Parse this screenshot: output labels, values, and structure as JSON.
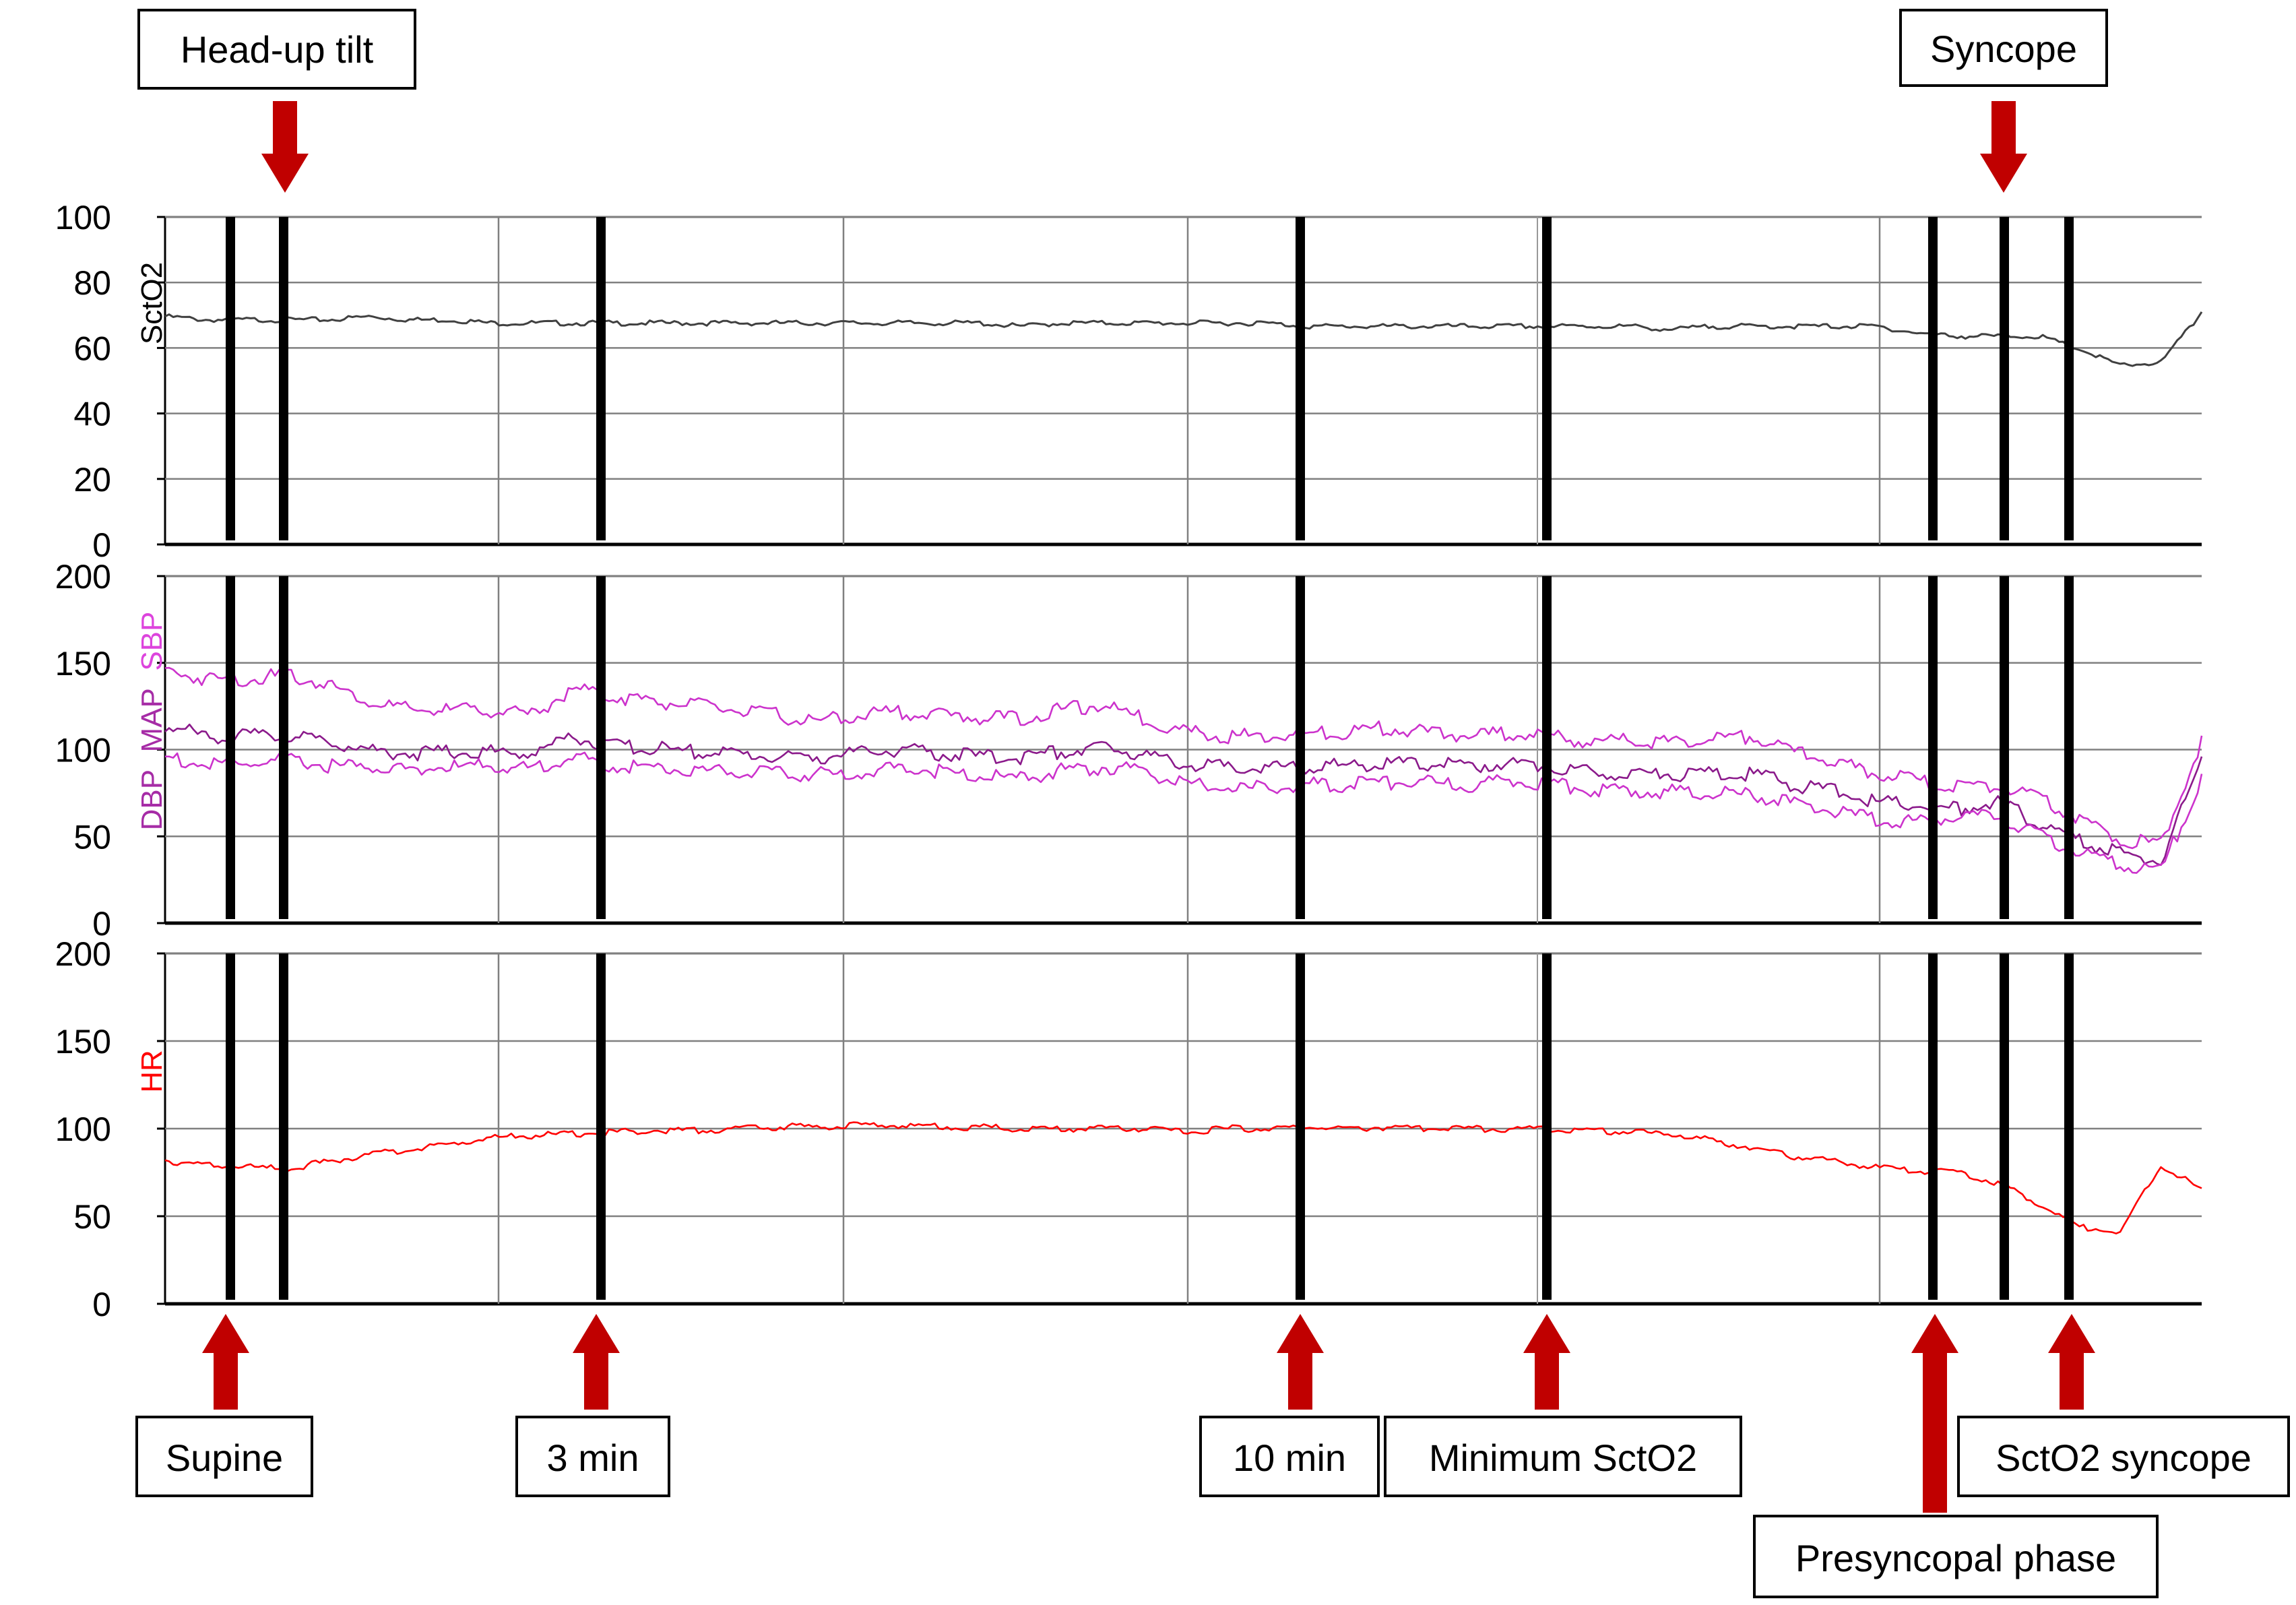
{
  "colors": {
    "sctO2": "#404040",
    "bp": "#cc33cc",
    "map": "#8b1a8b",
    "hr": "#ff0000",
    "marker": "#000000",
    "arrow": "#c00000",
    "grid": "#808080"
  },
  "annotations": {
    "head_up_tilt": "Head-up tilt",
    "syncope": "Syncope",
    "supine": "Supine",
    "three_min": "3 min",
    "ten_min": "10 min",
    "minimum_scto2": "Minimum SctO2",
    "presyncopal_phase": "Presyncopal phase",
    "scto2_syncope": "SctO2 syncope"
  },
  "chart_data": [
    {
      "type": "line",
      "ylabel": "SctO2",
      "ylim": [
        0,
        100
      ],
      "yticks": [
        "0",
        "20",
        "40",
        "60",
        "80",
        "100"
      ],
      "grid": true,
      "series": [
        {
          "name": "SctO2",
          "x": [
            0,
            2,
            4,
            6,
            8,
            10,
            12,
            14,
            16,
            18,
            20,
            22,
            24,
            26,
            28,
            30,
            32,
            34,
            36,
            38,
            40,
            42,
            44,
            46,
            48,
            50,
            52,
            54,
            56,
            58,
            60,
            62,
            64,
            66,
            68,
            70,
            72,
            74,
            76,
            78,
            80,
            82,
            84,
            86,
            88,
            90,
            92,
            94,
            96,
            98,
            100
          ],
          "values": [
            70,
            69,
            69,
            69,
            69,
            70,
            69,
            69,
            68,
            68,
            68,
            68,
            68,
            68,
            68,
            68,
            68,
            68,
            68,
            68,
            68,
            67,
            68,
            68,
            68,
            68,
            68,
            68,
            67,
            67,
            67,
            67,
            67,
            67,
            67,
            67,
            67,
            66,
            67,
            67,
            67,
            67,
            67,
            65,
            64,
            64,
            64,
            60,
            55,
            56,
            71
          ]
        }
      ]
    },
    {
      "type": "line",
      "ylabel_parts": [
        "DBP",
        "MAP",
        "SBP"
      ],
      "ylim": [
        0,
        200
      ],
      "yticks": [
        "0",
        "50",
        "100",
        "150",
        "200"
      ],
      "grid": true,
      "series": [
        {
          "name": "SBP",
          "x": [
            0,
            2,
            4,
            6,
            8,
            10,
            12,
            14,
            16,
            18,
            20,
            22,
            24,
            26,
            28,
            30,
            32,
            34,
            36,
            38,
            40,
            42,
            44,
            46,
            48,
            50,
            52,
            54,
            56,
            58,
            60,
            62,
            64,
            66,
            68,
            70,
            72,
            74,
            76,
            78,
            80,
            82,
            84,
            86,
            88,
            90,
            92,
            94,
            96,
            98,
            100
          ],
          "values": [
            148,
            143,
            143,
            145,
            140,
            130,
            125,
            125,
            125,
            122,
            137,
            133,
            130,
            128,
            125,
            122,
            118,
            122,
            124,
            122,
            121,
            120,
            125,
            128,
            120,
            113,
            110,
            110,
            111,
            112,
            115,
            112,
            110,
            112,
            110,
            106,
            108,
            106,
            108,
            110,
            101,
            95,
            88,
            85,
            80,
            82,
            74,
            63,
            50,
            48,
            108
          ]
        },
        {
          "name": "MAP",
          "x": [
            0,
            2,
            4,
            6,
            8,
            10,
            12,
            14,
            16,
            18,
            20,
            22,
            24,
            26,
            28,
            30,
            32,
            34,
            36,
            38,
            40,
            42,
            44,
            46,
            48,
            50,
            52,
            54,
            56,
            58,
            60,
            62,
            64,
            66,
            68,
            70,
            72,
            74,
            76,
            78,
            80,
            82,
            84,
            86,
            88,
            90,
            92,
            94,
            96,
            98,
            100
          ],
          "values": [
            116,
            110,
            110,
            110,
            107,
            102,
            100,
            101,
            101,
            100,
            110,
            104,
            103,
            101,
            100,
            98,
            98,
            100,
            102,
            100,
            98,
            98,
            101,
            103,
            100,
            94,
            92,
            92,
            92,
            93,
            94,
            94,
            93,
            94,
            93,
            89,
            89,
            88,
            88,
            88,
            82,
            78,
            72,
            70,
            68,
            72,
            60,
            50,
            42,
            38,
            96
          ]
        },
        {
          "name": "DBP",
          "x": [
            0,
            2,
            4,
            6,
            8,
            10,
            12,
            14,
            16,
            18,
            20,
            22,
            24,
            26,
            28,
            30,
            32,
            34,
            36,
            38,
            40,
            42,
            44,
            46,
            48,
            50,
            52,
            54,
            56,
            58,
            60,
            62,
            64,
            66,
            68,
            70,
            72,
            74,
            76,
            78,
            80,
            82,
            84,
            86,
            88,
            90,
            92,
            94,
            96,
            98,
            100
          ],
          "values": [
            98,
            93,
            94,
            96,
            93,
            92,
            91,
            92,
            93,
            91,
            98,
            93,
            92,
            90,
            90,
            88,
            88,
            88,
            92,
            90,
            87,
            85,
            90,
            92,
            90,
            82,
            80,
            80,
            82,
            82,
            83,
            83,
            82,
            84,
            83,
            79,
            79,
            78,
            77,
            76,
            71,
            66,
            62,
            60,
            64,
            65,
            52,
            44,
            36,
            32,
            86
          ]
        }
      ]
    },
    {
      "type": "line",
      "ylabel": "HR",
      "ylim": [
        0,
        200
      ],
      "yticks": [
        "0",
        "50",
        "100",
        "150",
        "200"
      ],
      "grid": true,
      "series": [
        {
          "name": "HR",
          "x": [
            0,
            2,
            4,
            6,
            8,
            10,
            12,
            14,
            16,
            18,
            20,
            22,
            24,
            26,
            28,
            30,
            32,
            34,
            36,
            38,
            40,
            42,
            44,
            46,
            48,
            50,
            52,
            54,
            56,
            58,
            60,
            62,
            64,
            66,
            68,
            70,
            72,
            74,
            76,
            78,
            80,
            82,
            84,
            86,
            88,
            90,
            92,
            94,
            96,
            98,
            100
          ],
          "values": [
            83,
            80,
            79,
            78,
            82,
            86,
            89,
            92,
            96,
            97,
            98,
            99,
            100,
            100,
            101,
            102,
            102,
            103,
            103,
            102,
            102,
            101,
            101,
            101,
            101,
            99,
            101,
            101,
            102,
            101,
            102,
            101,
            101,
            101,
            101,
            100,
            99,
            98,
            94,
            90,
            85,
            82,
            79,
            77,
            76,
            70,
            58,
            45,
            42,
            80,
            66
          ]
        }
      ]
    }
  ]
}
